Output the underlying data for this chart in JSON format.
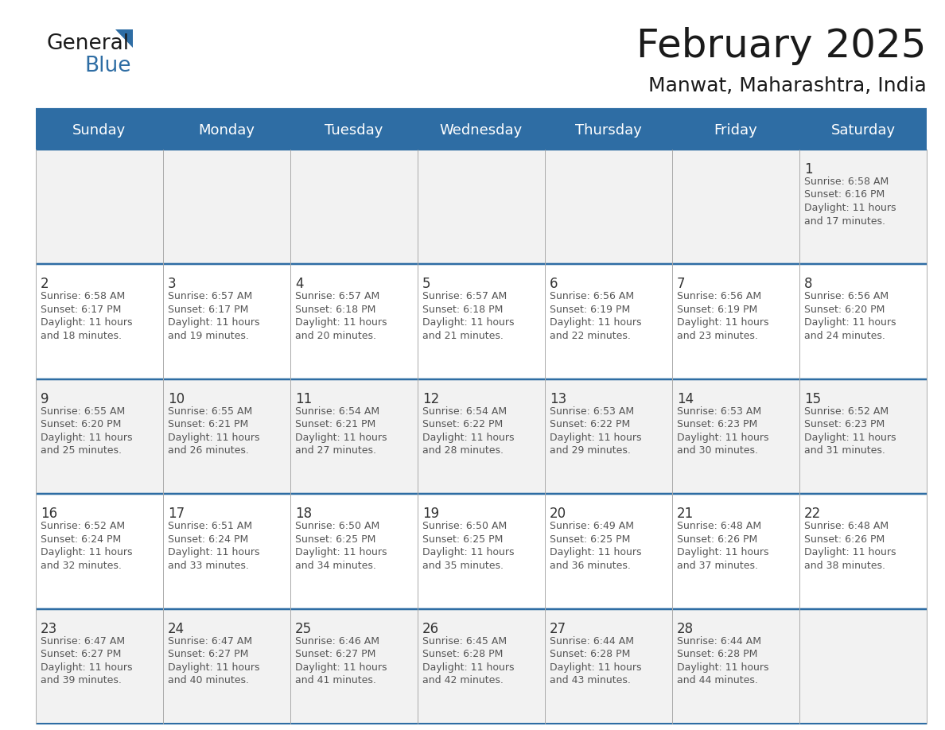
{
  "title": "February 2025",
  "subtitle": "Manwat, Maharashtra, India",
  "header_bg": "#2E6DA4",
  "header_text_color": "#FFFFFF",
  "cell_bg_light": "#F2F2F2",
  "cell_bg_white": "#FFFFFF",
  "border_color": "#2E6DA4",
  "cell_border_color": "#AAAAAA",
  "day_number_color": "#333333",
  "text_color": "#555555",
  "days_of_week": [
    "Sunday",
    "Monday",
    "Tuesday",
    "Wednesday",
    "Thursday",
    "Friday",
    "Saturday"
  ],
  "calendar_data": [
    [
      null,
      null,
      null,
      null,
      null,
      null,
      1
    ],
    [
      2,
      3,
      4,
      5,
      6,
      7,
      8
    ],
    [
      9,
      10,
      11,
      12,
      13,
      14,
      15
    ],
    [
      16,
      17,
      18,
      19,
      20,
      21,
      22
    ],
    [
      23,
      24,
      25,
      26,
      27,
      28,
      null
    ]
  ],
  "sunrise_data": {
    "1": "6:58 AM",
    "2": "6:58 AM",
    "3": "6:57 AM",
    "4": "6:57 AM",
    "5": "6:57 AM",
    "6": "6:56 AM",
    "7": "6:56 AM",
    "8": "6:56 AM",
    "9": "6:55 AM",
    "10": "6:55 AM",
    "11": "6:54 AM",
    "12": "6:54 AM",
    "13": "6:53 AM",
    "14": "6:53 AM",
    "15": "6:52 AM",
    "16": "6:52 AM",
    "17": "6:51 AM",
    "18": "6:50 AM",
    "19": "6:50 AM",
    "20": "6:49 AM",
    "21": "6:48 AM",
    "22": "6:48 AM",
    "23": "6:47 AM",
    "24": "6:47 AM",
    "25": "6:46 AM",
    "26": "6:45 AM",
    "27": "6:44 AM",
    "28": "6:44 AM"
  },
  "sunset_data": {
    "1": "6:16 PM",
    "2": "6:17 PM",
    "3": "6:17 PM",
    "4": "6:18 PM",
    "5": "6:18 PM",
    "6": "6:19 PM",
    "7": "6:19 PM",
    "8": "6:20 PM",
    "9": "6:20 PM",
    "10": "6:21 PM",
    "11": "6:21 PM",
    "12": "6:22 PM",
    "13": "6:22 PM",
    "14": "6:23 PM",
    "15": "6:23 PM",
    "16": "6:24 PM",
    "17": "6:24 PM",
    "18": "6:25 PM",
    "19": "6:25 PM",
    "20": "6:25 PM",
    "21": "6:26 PM",
    "22": "6:26 PM",
    "23": "6:27 PM",
    "24": "6:27 PM",
    "25": "6:27 PM",
    "26": "6:28 PM",
    "27": "6:28 PM",
    "28": "6:28 PM"
  },
  "daylight_data": {
    "1": "11 hours and 17 minutes.",
    "2": "11 hours and 18 minutes.",
    "3": "11 hours and 19 minutes.",
    "4": "11 hours and 20 minutes.",
    "5": "11 hours and 21 minutes.",
    "6": "11 hours and 22 minutes.",
    "7": "11 hours and 23 minutes.",
    "8": "11 hours and 24 minutes.",
    "9": "11 hours and 25 minutes.",
    "10": "11 hours and 26 minutes.",
    "11": "11 hours and 27 minutes.",
    "12": "11 hours and 28 minutes.",
    "13": "11 hours and 29 minutes.",
    "14": "11 hours and 30 minutes.",
    "15": "11 hours and 31 minutes.",
    "16": "11 hours and 32 minutes.",
    "17": "11 hours and 33 minutes.",
    "18": "11 hours and 34 minutes.",
    "19": "11 hours and 35 minutes.",
    "20": "11 hours and 36 minutes.",
    "21": "11 hours and 37 minutes.",
    "22": "11 hours and 38 minutes.",
    "23": "11 hours and 39 minutes.",
    "24": "11 hours and 40 minutes.",
    "25": "11 hours and 41 minutes.",
    "26": "11 hours and 42 minutes.",
    "27": "11 hours and 43 minutes.",
    "28": "11 hours and 44 minutes."
  },
  "logo_general_color": "#1a1a1a",
  "logo_blue_color": "#2E6DA4",
  "title_font_size": 36,
  "subtitle_font_size": 18,
  "dow_font_size": 13,
  "day_num_font_size": 12,
  "info_font_size": 9
}
